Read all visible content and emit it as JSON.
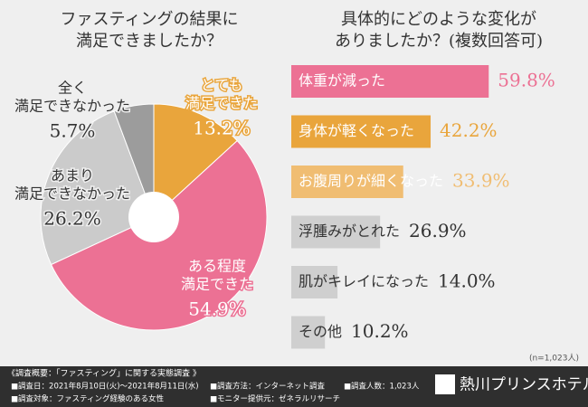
{
  "chart_data": [
    {
      "type": "pie",
      "title": [
        "ファスティングの結果に",
        "満足できましたか？"
      ],
      "categories": [
        [
          "とても",
          "満足できた"
        ],
        [
          "ある程度",
          "満足できた"
        ],
        [
          "あまり",
          "満足できなかった"
        ],
        [
          "全く",
          "満足できなかった"
        ]
      ],
      "values": [
        13.2,
        54.9,
        26.2,
        5.7
      ],
      "value_labels": [
        "13.2%",
        "54.9%",
        "26.2%",
        "5.7%"
      ],
      "colors": [
        "#e9a53c",
        "#ec7194",
        "#cbcbcb",
        "#9c9c9c"
      ]
    },
    {
      "type": "barh",
      "title": [
        "具体的にどのような変化が",
        "ありましたか？(複数回答可)"
      ],
      "categories": [
        "体重が減った",
        "身体が軽くなった",
        "お腹周りが細くなった",
        "浮腫みがとれた",
        "肌がキレイになった",
        "その他"
      ],
      "values": [
        59.8,
        42.2,
        33.9,
        26.9,
        14.0,
        10.2
      ],
      "value_labels": [
        "59.8%",
        "42.2%",
        "33.9%",
        "26.9%",
        "14.0%",
        "10.2%"
      ],
      "colors": [
        "#ec7194",
        "#e9a53c",
        "#f0bd72",
        "#b5b5b5",
        "#b5b5b5",
        "#b5b5b5"
      ],
      "note": "(n=1,023人)"
    }
  ],
  "footer": {
    "heading": "《調査概要：「ファスティング」に関する実態調査 》",
    "items": [
      "■調査日：2021年8月10日(火)～2021年8月11日(水)",
      "■調査方法：インターネット調査",
      "■調査人数：1,023人",
      "■調査対象：ファスティング経験のある女性",
      "■モニター提供元：ゼネラルリサーチ"
    ],
    "brand": "熱川プリンスホテル"
  }
}
